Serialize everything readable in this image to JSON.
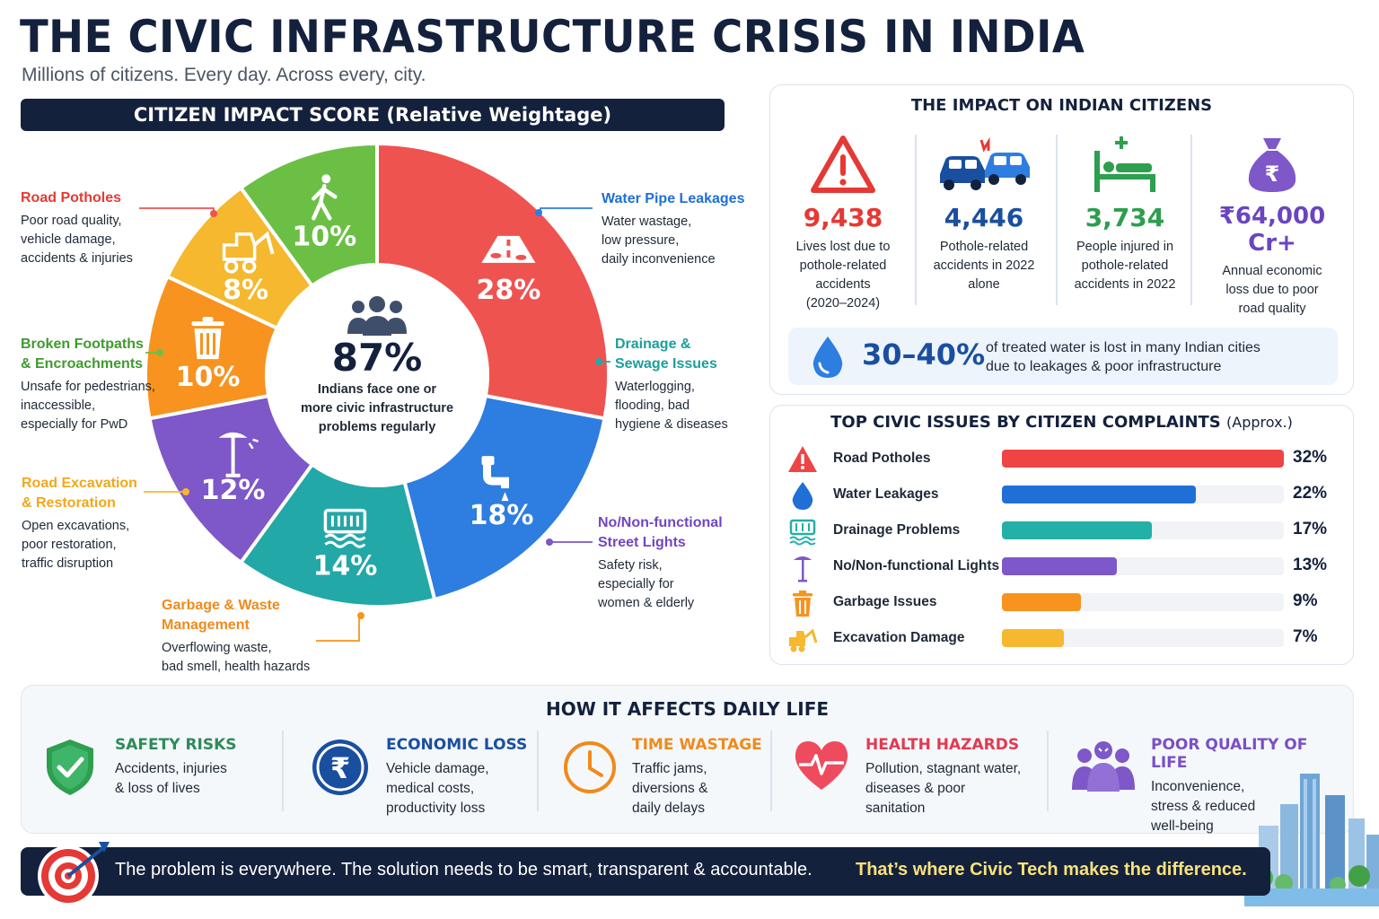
{
  "header": {
    "title": "THE CIVIC INFRASTRUCTURE CRISIS IN INDIA",
    "subtitle": "Millions of citizens. Every day. Across every, city."
  },
  "impact_chart_header": "CITIZEN IMPACT SCORE (Relative Weightage)",
  "center": {
    "value": "87%",
    "text_lines": [
      "Indians face one or",
      "more civic infrastructure",
      "problems regularly"
    ]
  },
  "callouts": [
    {
      "title_lines": [
        "Road Potholes"
      ],
      "desc_lines": [
        "Poor road quality,",
        "vehicle damage,",
        "accidents & injuries"
      ]
    },
    {
      "title_lines": [
        "Water Pipe Leakages"
      ],
      "desc_lines": [
        "Water wastage,",
        "low pressure,",
        "daily inconvenience"
      ]
    },
    {
      "title_lines": [
        "Drainage &",
        "Sewage Issues"
      ],
      "desc_lines": [
        "Waterlogging,",
        "flooding, bad",
        "hygiene & diseases"
      ]
    },
    {
      "title_lines": [
        "No/Non-functional",
        "Street Lights"
      ],
      "desc_lines": [
        "Safety risk,",
        "especially for",
        "women & elderly"
      ]
    },
    {
      "title_lines": [
        "Garbage & Waste",
        "Management"
      ],
      "desc_lines": [
        "Overflowing waste,",
        "bad smell, health hazards"
      ]
    },
    {
      "title_lines": [
        "Road Excavation",
        "& Restoration"
      ],
      "desc_lines": [
        "Open excavations,",
        "poor restoration,",
        "traffic disruption"
      ]
    },
    {
      "title_lines": [
        "Broken Footpaths",
        "& Encroachments"
      ],
      "desc_lines": [
        "Unsafe for pedestrians,",
        "inaccessible,",
        "especially for PwD"
      ]
    }
  ],
  "chart_data": [
    {
      "type": "pie",
      "title": "CITIZEN IMPACT SCORE (Relative Weightage)",
      "categories": [
        "Road Potholes",
        "Water Pipe Leakages",
        "Drainage & Sewage Issues",
        "No/Non-functional Street Lights",
        "Garbage & Waste Management",
        "Road Excavation & Restoration",
        "Broken Footpaths & Encroachments"
      ],
      "values": [
        28,
        18,
        14,
        12,
        10,
        8,
        10
      ],
      "labels": [
        "28%",
        "18%",
        "14%",
        "12%",
        "10%",
        "8%",
        "10%"
      ],
      "colors": [
        "#ef5350",
        "#2e7de0",
        "#22a8a6",
        "#7e57c8",
        "#f7931e",
        "#f5b82e",
        "#6cbf45"
      ],
      "icons": [
        "road-icon",
        "pipe-icon",
        "drain-icon",
        "street-light-icon",
        "trash-icon",
        "excavator-icon",
        "pedestrian-icon"
      ],
      "center_label": "87%",
      "legend": "callouts"
    },
    {
      "type": "bar",
      "title": "TOP CIVIC ISSUES BY CITIZEN COMPLAINTS (Approx.)",
      "categories": [
        "Road Potholes",
        "Water Leakages",
        "Drainage Problems",
        "No/Non-functional Lights",
        "Garbage Issues",
        "Excavation Damage"
      ],
      "values": [
        32,
        22,
        17,
        13,
        9,
        7
      ],
      "labels": [
        "32%",
        "22%",
        "17%",
        "13%",
        "9%",
        "7%"
      ],
      "colors": [
        "#ef4444",
        "#1f6fd6",
        "#22b0a8",
        "#7e57c8",
        "#f7931e",
        "#f5b82e"
      ],
      "icons": [
        "warning-icon",
        "drop-icon",
        "drain-icon",
        "street-light-icon",
        "trash-icon",
        "excavator-icon"
      ],
      "xlim": [
        0,
        32
      ],
      "orientation": "horizontal"
    }
  ],
  "impact_panel": {
    "title": "THE IMPACT ON INDIAN CITIZENS",
    "stats": [
      {
        "value": "9,438",
        "color": "#e53935",
        "icon": "warning-icon",
        "desc_lines": [
          "Lives lost due to",
          "pothole-related",
          "accidents",
          "(2020–2024)"
        ]
      },
      {
        "value": "4,446",
        "color": "#1a4fa0",
        "icon": "car-crash-icon",
        "desc_lines": [
          "Pothole-related",
          "accidents in 2022",
          "alone"
        ]
      },
      {
        "value": "3,734",
        "color": "#2e9e4f",
        "icon": "hospital-bed-icon",
        "desc_lines": [
          "People injured in",
          "pothole-related",
          "accidents in 2022"
        ]
      },
      {
        "value": "₹64,000 Cr+",
        "color": "#6a44c2",
        "icon": "money-bag-icon",
        "desc_lines": [
          "Annual economic",
          "loss due to poor",
          "road quality"
        ]
      }
    ],
    "water": {
      "value": "30–40%",
      "text_lines": [
        "of treated water is lost in many Indian cities",
        "due to leakages & poor infrastructure"
      ]
    }
  },
  "complaints_panel": {
    "title": "TOP CIVIC ISSUES BY CITIZEN COMPLAINTS",
    "title_suffix": "(Approx.)"
  },
  "daily_life": {
    "title": "HOW IT AFFECTS DAILY LIFE",
    "items": [
      {
        "title": "SAFETY RISKS",
        "color": "#2e8b57",
        "icon": "shield-check-icon",
        "desc_lines": [
          "Accidents, injuries",
          "& loss of lives"
        ]
      },
      {
        "title": "ECONOMIC LOSS",
        "color": "#1a4fa0",
        "icon": "rupee-icon",
        "desc_lines": [
          "Vehicle damage,",
          "medical costs,",
          "productivity loss"
        ]
      },
      {
        "title": "TIME WASTAGE",
        "color": "#f08a1c",
        "icon": "clock-icon",
        "desc_lines": [
          "Traffic jams,",
          "diversions &",
          "daily delays"
        ]
      },
      {
        "title": "HEALTH HAZARDS",
        "color": "#e53950",
        "icon": "heart-pulse-icon",
        "desc_lines": [
          "Pollution, stagnant water,",
          "diseases & poor",
          "sanitation"
        ]
      },
      {
        "title": "POOR QUALITY OF LIFE",
        "color": "#7a4fc6",
        "icon": "people-icon",
        "desc_lines": [
          "Inconvenience,",
          "stress & reduced",
          "well-being"
        ]
      }
    ]
  },
  "footer": {
    "text": "The problem is everywhere. The solution needs to be smart, transparent & accountable.",
    "highlight": "That’s where Civic Tech makes the difference."
  }
}
